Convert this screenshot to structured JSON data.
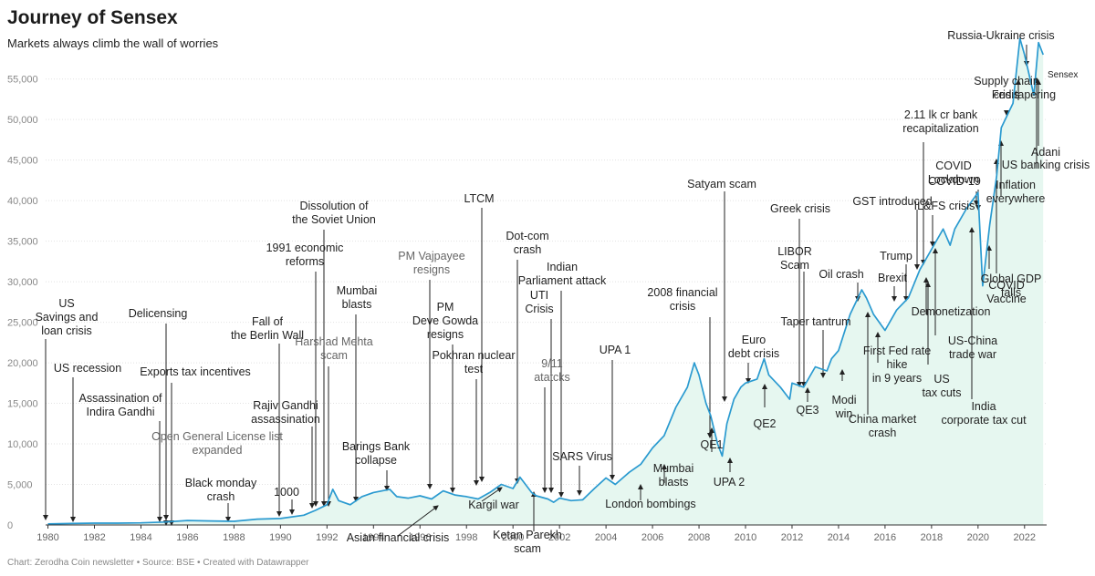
{
  "title": "Journey of Sensex",
  "subtitle": "Markets always climb the wall of worries",
  "footer": "Chart: Zerodha Coin newsletter • Source: BSE • Created with Datawrapper",
  "colors": {
    "line": "#2a9ad0",
    "area": "#e6f7f0",
    "grid": "#e2e2e2",
    "axis": "#333333",
    "annotation": "#222222",
    "annotation_gray": "#666666"
  },
  "chart_data": {
    "type": "area",
    "title": "Journey of Sensex",
    "subtitle": "Markets always climb the wall of worries",
    "series_label": "Sensex",
    "xlim": [
      1979.9,
      2022.95
    ],
    "ylim": [
      0,
      58000
    ],
    "y_ticks": [
      0,
      5000,
      10000,
      15000,
      20000,
      25000,
      30000,
      35000,
      40000,
      45000,
      50000,
      55000
    ],
    "y_tick_labels": [
      "0",
      "5,000",
      "10,000",
      "15,000",
      "20,000",
      "25,000",
      "30,000",
      "35,000",
      "40,000",
      "45,000",
      "50,000",
      "55,000"
    ],
    "x_ticks": [
      1980,
      1982,
      1984,
      1986,
      1988,
      1990,
      1992,
      1994,
      1996,
      1998,
      2000,
      2002,
      2004,
      2006,
      2008,
      2010,
      2012,
      2014,
      2016,
      2018,
      2020,
      2022
    ],
    "x_tick_labels": [
      "1980",
      "1982",
      "1984",
      "1986",
      "1988",
      "1990",
      "1992",
      "1994",
      "1996",
      "1998",
      "2000",
      "2002",
      "2004",
      "2006",
      "2008",
      "2010",
      "2012",
      "2014",
      "2016",
      "2018",
      "2020",
      "2022"
    ],
    "x": [
      1980,
      1981,
      1982,
      1983,
      1984,
      1985,
      1986,
      1987,
      1988,
      1989,
      1990,
      1991,
      1991.5,
      1992,
      1992.25,
      1992.5,
      1993,
      1993.5,
      1994,
      1994.7,
      1995,
      1995.5,
      1996,
      1996.5,
      1997,
      1997.5,
      1998,
      1998.5,
      1999,
      1999.5,
      2000,
      2000.3,
      2000.8,
      2001,
      2001.5,
      2001.75,
      2002,
      2002.5,
      2003,
      2003.5,
      2004,
      2004.4,
      2004.8,
      2005,
      2005.5,
      2006,
      2006.5,
      2007,
      2007.5,
      2007.8,
      2008,
      2008.3,
      2008.5,
      2008.8,
      2009,
      2009.2,
      2009.5,
      2009.8,
      2010,
      2010.5,
      2010.8,
      2011,
      2011.5,
      2011.9,
      2012,
      2012.5,
      2013,
      2013.5,
      2013.7,
      2014,
      2014.5,
      2015,
      2015.2,
      2015.5,
      2016,
      2016.5,
      2017,
      2017.5,
      2018,
      2018.5,
      2018.8,
      2019,
      2019.5,
      2020,
      2020.2,
      2020.5,
      2020.8,
      2021,
      2021.5,
      2021.8,
      2022,
      2022.4,
      2022.6,
      2022.8
    ],
    "values": [
      120,
      175,
      220,
      230,
      260,
      360,
      550,
      500,
      450,
      720,
      800,
      1200,
      1800,
      2500,
      4400,
      3000,
      2500,
      3500,
      4000,
      4400,
      3500,
      3300,
      3600,
      3200,
      4200,
      3700,
      3500,
      3200,
      4000,
      5000,
      4500,
      5900,
      4000,
      3600,
      3200,
      2800,
      3300,
      3000,
      3100,
      4500,
      5800,
      5000,
      6000,
      6500,
      7500,
      9500,
      11000,
      14500,
      17000,
      20000,
      18500,
      15000,
      13500,
      10000,
      8500,
      12500,
      15500,
      17000,
      17500,
      18000,
      20500,
      18500,
      17000,
      15500,
      17500,
      17000,
      19500,
      19000,
      20500,
      21500,
      26000,
      29000,
      28000,
      26000,
      24000,
      26500,
      28000,
      31500,
      34000,
      36500,
      34500,
      36500,
      39000,
      41000,
      29500,
      37000,
      43000,
      49000,
      52000,
      60000,
      58000,
      53000,
      59500,
      58000
    ],
    "annotations": [
      {
        "label": "US\nSavings and\nloan crisis",
        "year": 1980
      },
      {
        "label": "US recession",
        "year": 1981
      },
      {
        "label": "Assassination of\nIndira Gandhi",
        "year": 1984.9
      },
      {
        "label": "Delicensing",
        "year": 1985.1
      },
      {
        "label": "Exports tax incentives",
        "year": 1985.4
      },
      {
        "label": "Open General License list\nexpanded",
        "year": 1985.2
      },
      {
        "label": "Black monday\ncrash",
        "year": 1987.8
      },
      {
        "label": "Fall of\nthe Berlin Wall",
        "year": 1989.9
      },
      {
        "label": "1000",
        "year": 1990.6
      },
      {
        "label": "Rajiv Gandhi\nassassination",
        "year": 1991.4
      },
      {
        "label": "1991 economic\nreforms",
        "year": 1991.6
      },
      {
        "label": "Harshad Mehta\nscam",
        "year": 1992.3
      },
      {
        "label": "Dissolution of\nthe Soviet Union",
        "year": 1991.9
      },
      {
        "label": "Mumbai\nblasts",
        "year": 1993.2
      },
      {
        "label": "Barings Bank\ncollapse",
        "year": 1995.1
      },
      {
        "label": "Asian financial crisis",
        "year": 1997.5
      },
      {
        "label": "PM Vajpayee\nresigns",
        "year": 1999.3
      },
      {
        "label": "PM\nDeve Gowda\nresigns",
        "year": 1997.3
      },
      {
        "label": "Pokhran nuclear\ntest",
        "year": 1998.4
      },
      {
        "label": "LTCM",
        "year": 1998.7
      },
      {
        "label": "Kargil war",
        "year": 1999.4
      },
      {
        "label": "Dot-com\ncrash",
        "year": 2000.2
      },
      {
        "label": "Indian\nParliament attack",
        "year": 2001.9
      },
      {
        "label": "UTI\nCrisis",
        "year": 2001.5
      },
      {
        "label": "9/11\natatcks",
        "year": 2001.8
      },
      {
        "label": "Ketan Parekh\nscam",
        "year": 2001.2
      },
      {
        "label": "SARS Virus",
        "year": 2003.3
      },
      {
        "label": "UPA 1",
        "year": 2004.4
      },
      {
        "label": "London bombings",
        "year": 2005.5
      },
      {
        "label": "Mumbai\nblasts",
        "year": 2006.5
      },
      {
        "label": "2008 financial\ncrisis",
        "year": 2008.7
      },
      {
        "label": "QE1",
        "year": 2009
      },
      {
        "label": "Satyam scam",
        "year": 2009.1
      },
      {
        "label": "UPA 2",
        "year": 2009.4
      },
      {
        "label": "Euro\ndebt crisis",
        "year": 2010.2
      },
      {
        "label": "QE2",
        "year": 2010.8
      },
      {
        "label": "Greek crisis",
        "year": 2012.3
      },
      {
        "label": "LIBOR\nScam",
        "year": 2012.6
      },
      {
        "label": "QE3",
        "year": 2012.8
      },
      {
        "label": "Taper tantrum",
        "year": 2013.4
      },
      {
        "label": "Oil crash",
        "year": 2014.5
      },
      {
        "label": "Modi\nwin",
        "year": 2014.3
      },
      {
        "label": "China market\ncrash",
        "year": 2015.5
      },
      {
        "label": "First Fed rate\nhike\nin 9 years",
        "year": 2015.9
      },
      {
        "label": "Brexit",
        "year": 2016.5
      },
      {
        "label": "Trump",
        "year": 2016.9
      },
      {
        "label": "Demonetization",
        "year": 2016.9
      },
      {
        "label": "GST introduced",
        "year": 2017.5
      },
      {
        "label": "2.11 lk cr bank\nrecapitalization",
        "year": 2017.8
      },
      {
        "label": "IL&FS crisis",
        "year": 2018.7
      },
      {
        "label": "US\ntax cuts",
        "year": 2018
      },
      {
        "label": "US-China\ntrade war",
        "year": 2018.2
      },
      {
        "label": "India\ncorporate tax cut",
        "year": 2019.7
      },
      {
        "label": "COVID\nLockdown",
        "year": 2020.2
      },
      {
        "label": "COVID-19",
        "year": 2020.1
      },
      {
        "label": "Global GDP\nfalls",
        "year": 2020.5
      },
      {
        "label": "COVID\nVaccine",
        "year": 2020.9
      },
      {
        "label": "Inflation\neverywhere",
        "year": 2021
      },
      {
        "label": "Supply chain\ncrisis",
        "year": 2021.3
      },
      {
        "label": "Fed tapering",
        "year": 2021.8
      },
      {
        "label": "Russia-Ukraine crisis",
        "year": 2022.2
      },
      {
        "label": "US banking crisis",
        "year": 2022.5
      },
      {
        "label": "Adani",
        "year": 2022.6
      }
    ]
  }
}
